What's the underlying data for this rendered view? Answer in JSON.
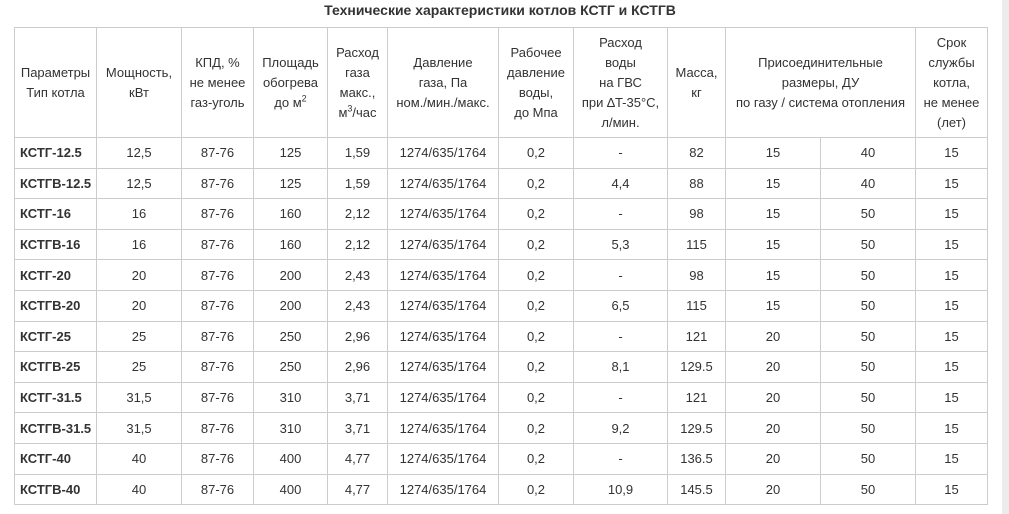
{
  "title": "Технические характеристики котлов КСТГ и КСТГВ",
  "headers": {
    "params": [
      "Параметры",
      "Тип котла"
    ],
    "power": [
      "Мощность,",
      "кВт"
    ],
    "kpd": [
      "КПД, %",
      "не менее",
      "газ-уголь"
    ],
    "area": [
      "Площадь",
      "обогрева",
      "до м",
      "2"
    ],
    "gas": [
      "Расход",
      "газа",
      "макс.,",
      "м",
      "3",
      "/час"
    ],
    "pressure": [
      "Давление",
      "газа, Па",
      "ном./мин./макс."
    ],
    "water_pressure": [
      "Рабочее",
      "давление",
      "воды,",
      "до Мпа"
    ],
    "water_flow": [
      "Расход",
      "воды",
      "на ГВС",
      "при ∆T-35°C,",
      "л/мин."
    ],
    "mass": [
      "Масса,",
      "кг"
    ],
    "connect": [
      "Присоединительные",
      "размеры, ДУ",
      "по газу / система отопления"
    ],
    "life": [
      "Срок",
      "службы",
      "котла,",
      "не менее",
      "(лет)"
    ]
  },
  "rows": [
    [
      "КСТГ-12.5",
      "12,5",
      "87-76",
      "125",
      "1,59",
      "1274/635/1764",
      "0,2",
      "-",
      "82",
      "15",
      "40",
      "15"
    ],
    [
      "КСТГВ-12.5",
      "12,5",
      "87-76",
      "125",
      "1,59",
      "1274/635/1764",
      "0,2",
      "4,4",
      "88",
      "15",
      "40",
      "15"
    ],
    [
      "КСТГ-16",
      "16",
      "87-76",
      "160",
      "2,12",
      "1274/635/1764",
      "0,2",
      "-",
      "98",
      "15",
      "50",
      "15"
    ],
    [
      "КСТГВ-16",
      "16",
      "87-76",
      "160",
      "2,12",
      "1274/635/1764",
      "0,2",
      "5,3",
      "115",
      "15",
      "50",
      "15"
    ],
    [
      "КСТГ-20",
      "20",
      "87-76",
      "200",
      "2,43",
      "1274/635/1764",
      "0,2",
      "-",
      "98",
      "15",
      "50",
      "15"
    ],
    [
      "КСТГВ-20",
      "20",
      "87-76",
      "200",
      "2,43",
      "1274/635/1764",
      "0,2",
      "6,5",
      "115",
      "15",
      "50",
      "15"
    ],
    [
      "КСТГ-25",
      "25",
      "87-76",
      "250",
      "2,96",
      "1274/635/1764",
      "0,2",
      "-",
      "121",
      "20",
      "50",
      "15"
    ],
    [
      "КСТГВ-25",
      "25",
      "87-76",
      "250",
      "2,96",
      "1274/635/1764",
      "0,2",
      "8,1",
      "129.5",
      "20",
      "50",
      "15"
    ],
    [
      "КСТГ-31.5",
      "31,5",
      "87-76",
      "310",
      "3,71",
      "1274/635/1764",
      "0,2",
      "-",
      "121",
      "20",
      "50",
      "15"
    ],
    [
      "КСТГВ-31.5",
      "31,5",
      "87-76",
      "310",
      "3,71",
      "1274/635/1764",
      "0,2",
      "9,2",
      "129.5",
      "20",
      "50",
      "15"
    ],
    [
      "КСТГ-40",
      "40",
      "87-76",
      "400",
      "4,77",
      "1274/635/1764",
      "0,2",
      "-",
      "136.5",
      "20",
      "50",
      "15"
    ],
    [
      "КСТГВ-40",
      "40",
      "87-76",
      "400",
      "4,77",
      "1274/635/1764",
      "0,2",
      "10,9",
      "145.5",
      "20",
      "50",
      "15"
    ]
  ]
}
